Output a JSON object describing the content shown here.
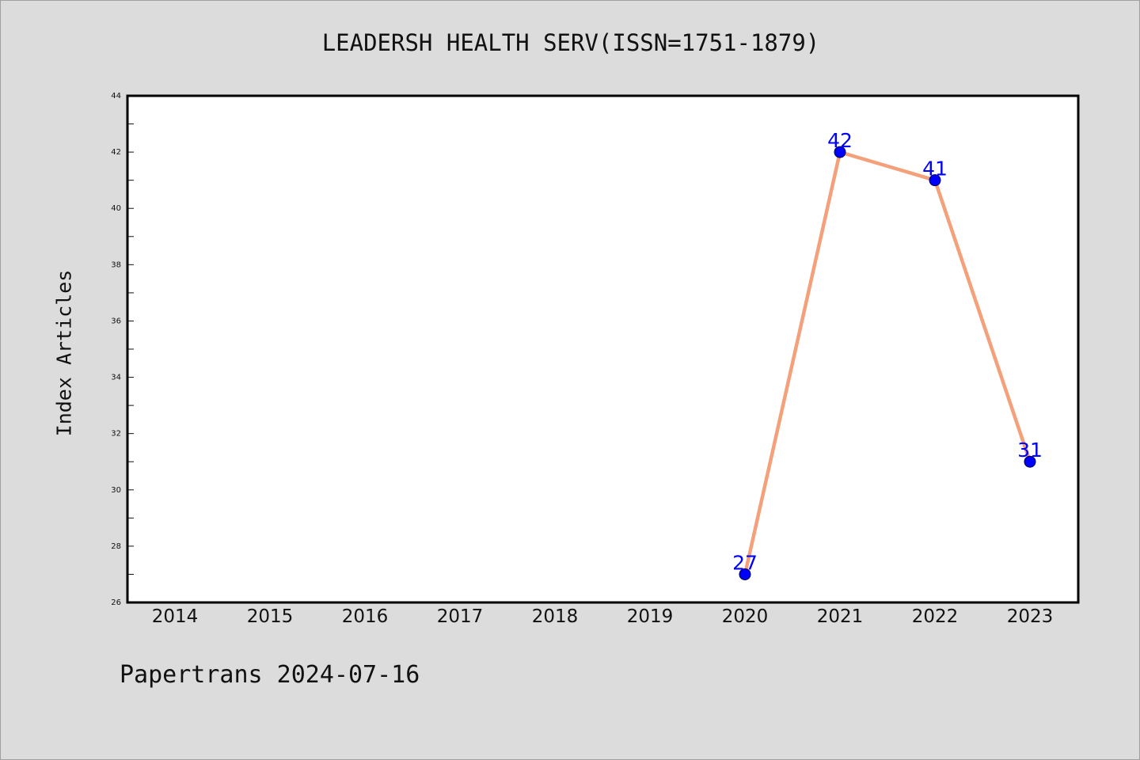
{
  "chart_data": {
    "type": "line",
    "title": "LEADERSH HEALTH SERV(ISSN=1751-1879)",
    "xlabel": "",
    "ylabel": "Index Articles",
    "categories": [
      "2014",
      "2015",
      "2016",
      "2017",
      "2018",
      "2019",
      "2020",
      "2021",
      "2022",
      "2023"
    ],
    "series": [
      {
        "points": [
          {
            "x": "2020",
            "y": 27
          },
          {
            "x": "2021",
            "y": 42
          },
          {
            "x": "2022",
            "y": 41
          },
          {
            "x": "2023",
            "y": 31
          }
        ]
      }
    ],
    "ylim": [
      26,
      44
    ],
    "yticks": [
      26,
      28,
      30,
      32,
      34,
      36,
      38,
      40,
      42,
      44
    ],
    "grid": false,
    "line_color": "#f4a07a",
    "marker_color": "#0000ff",
    "label_color": "#0000ff"
  },
  "footer": "Papertrans 2024-07-16"
}
